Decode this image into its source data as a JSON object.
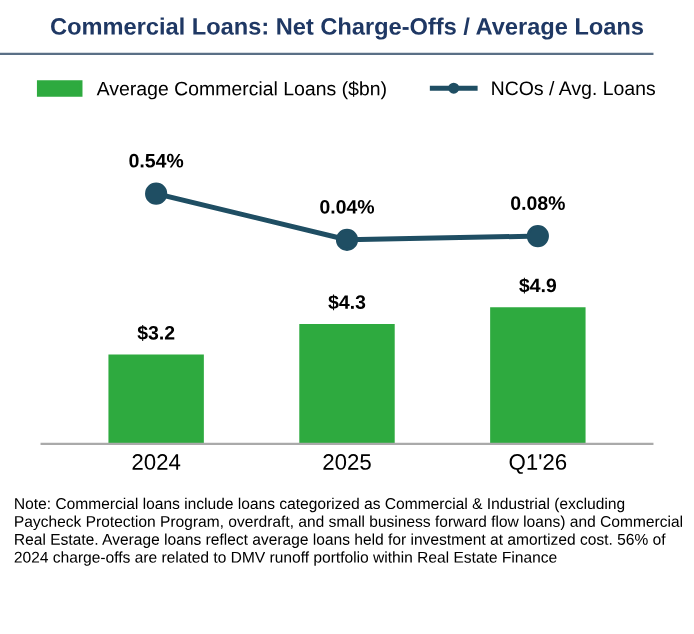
{
  "chart_data": [
    {
      "type": "line",
      "title": "Commercial Loans: Net Charge-Offs / Average Loans",
      "categories": [
        null,
        null,
        null
      ],
      "series": [
        {
          "name": "NCOs / Avg. Loans",
          "color": "#1f4e63",
          "values": [
            0.54,
            0.04,
            0.08
          ],
          "value_labels": [
            "0.54%",
            "0.04%",
            "0.08%"
          ]
        }
      ],
      "marker": "circle",
      "tick_labels": false,
      "legend": "top right"
    },
    {
      "type": "bar",
      "categories": [
        "2024",
        "2025",
        "Q1'26"
      ],
      "series": [
        {
          "name": "Average Commercial Loans ($bn)",
          "color": "#2eaa3f",
          "values": [
            3.2,
            4.3,
            4.9
          ],
          "value_labels": [
            "$3.2",
            "$4.3",
            "$4.9"
          ]
        }
      ],
      "tick_labels": "x",
      "legend": "top left",
      "annotations": [
        "Note: Commercial loans include loans categorized as Commercial & Industrial (excluding Paycheck Protection Program, overdraft, and small business forward flow loans) and Commercial Real Estate. Average loans reflect average loans held for investment at amortized cost. 56% of 2024 charge-offs are related to DMV runoff portfolio within Real Estate Finance"
      ]
    }
  ]
}
